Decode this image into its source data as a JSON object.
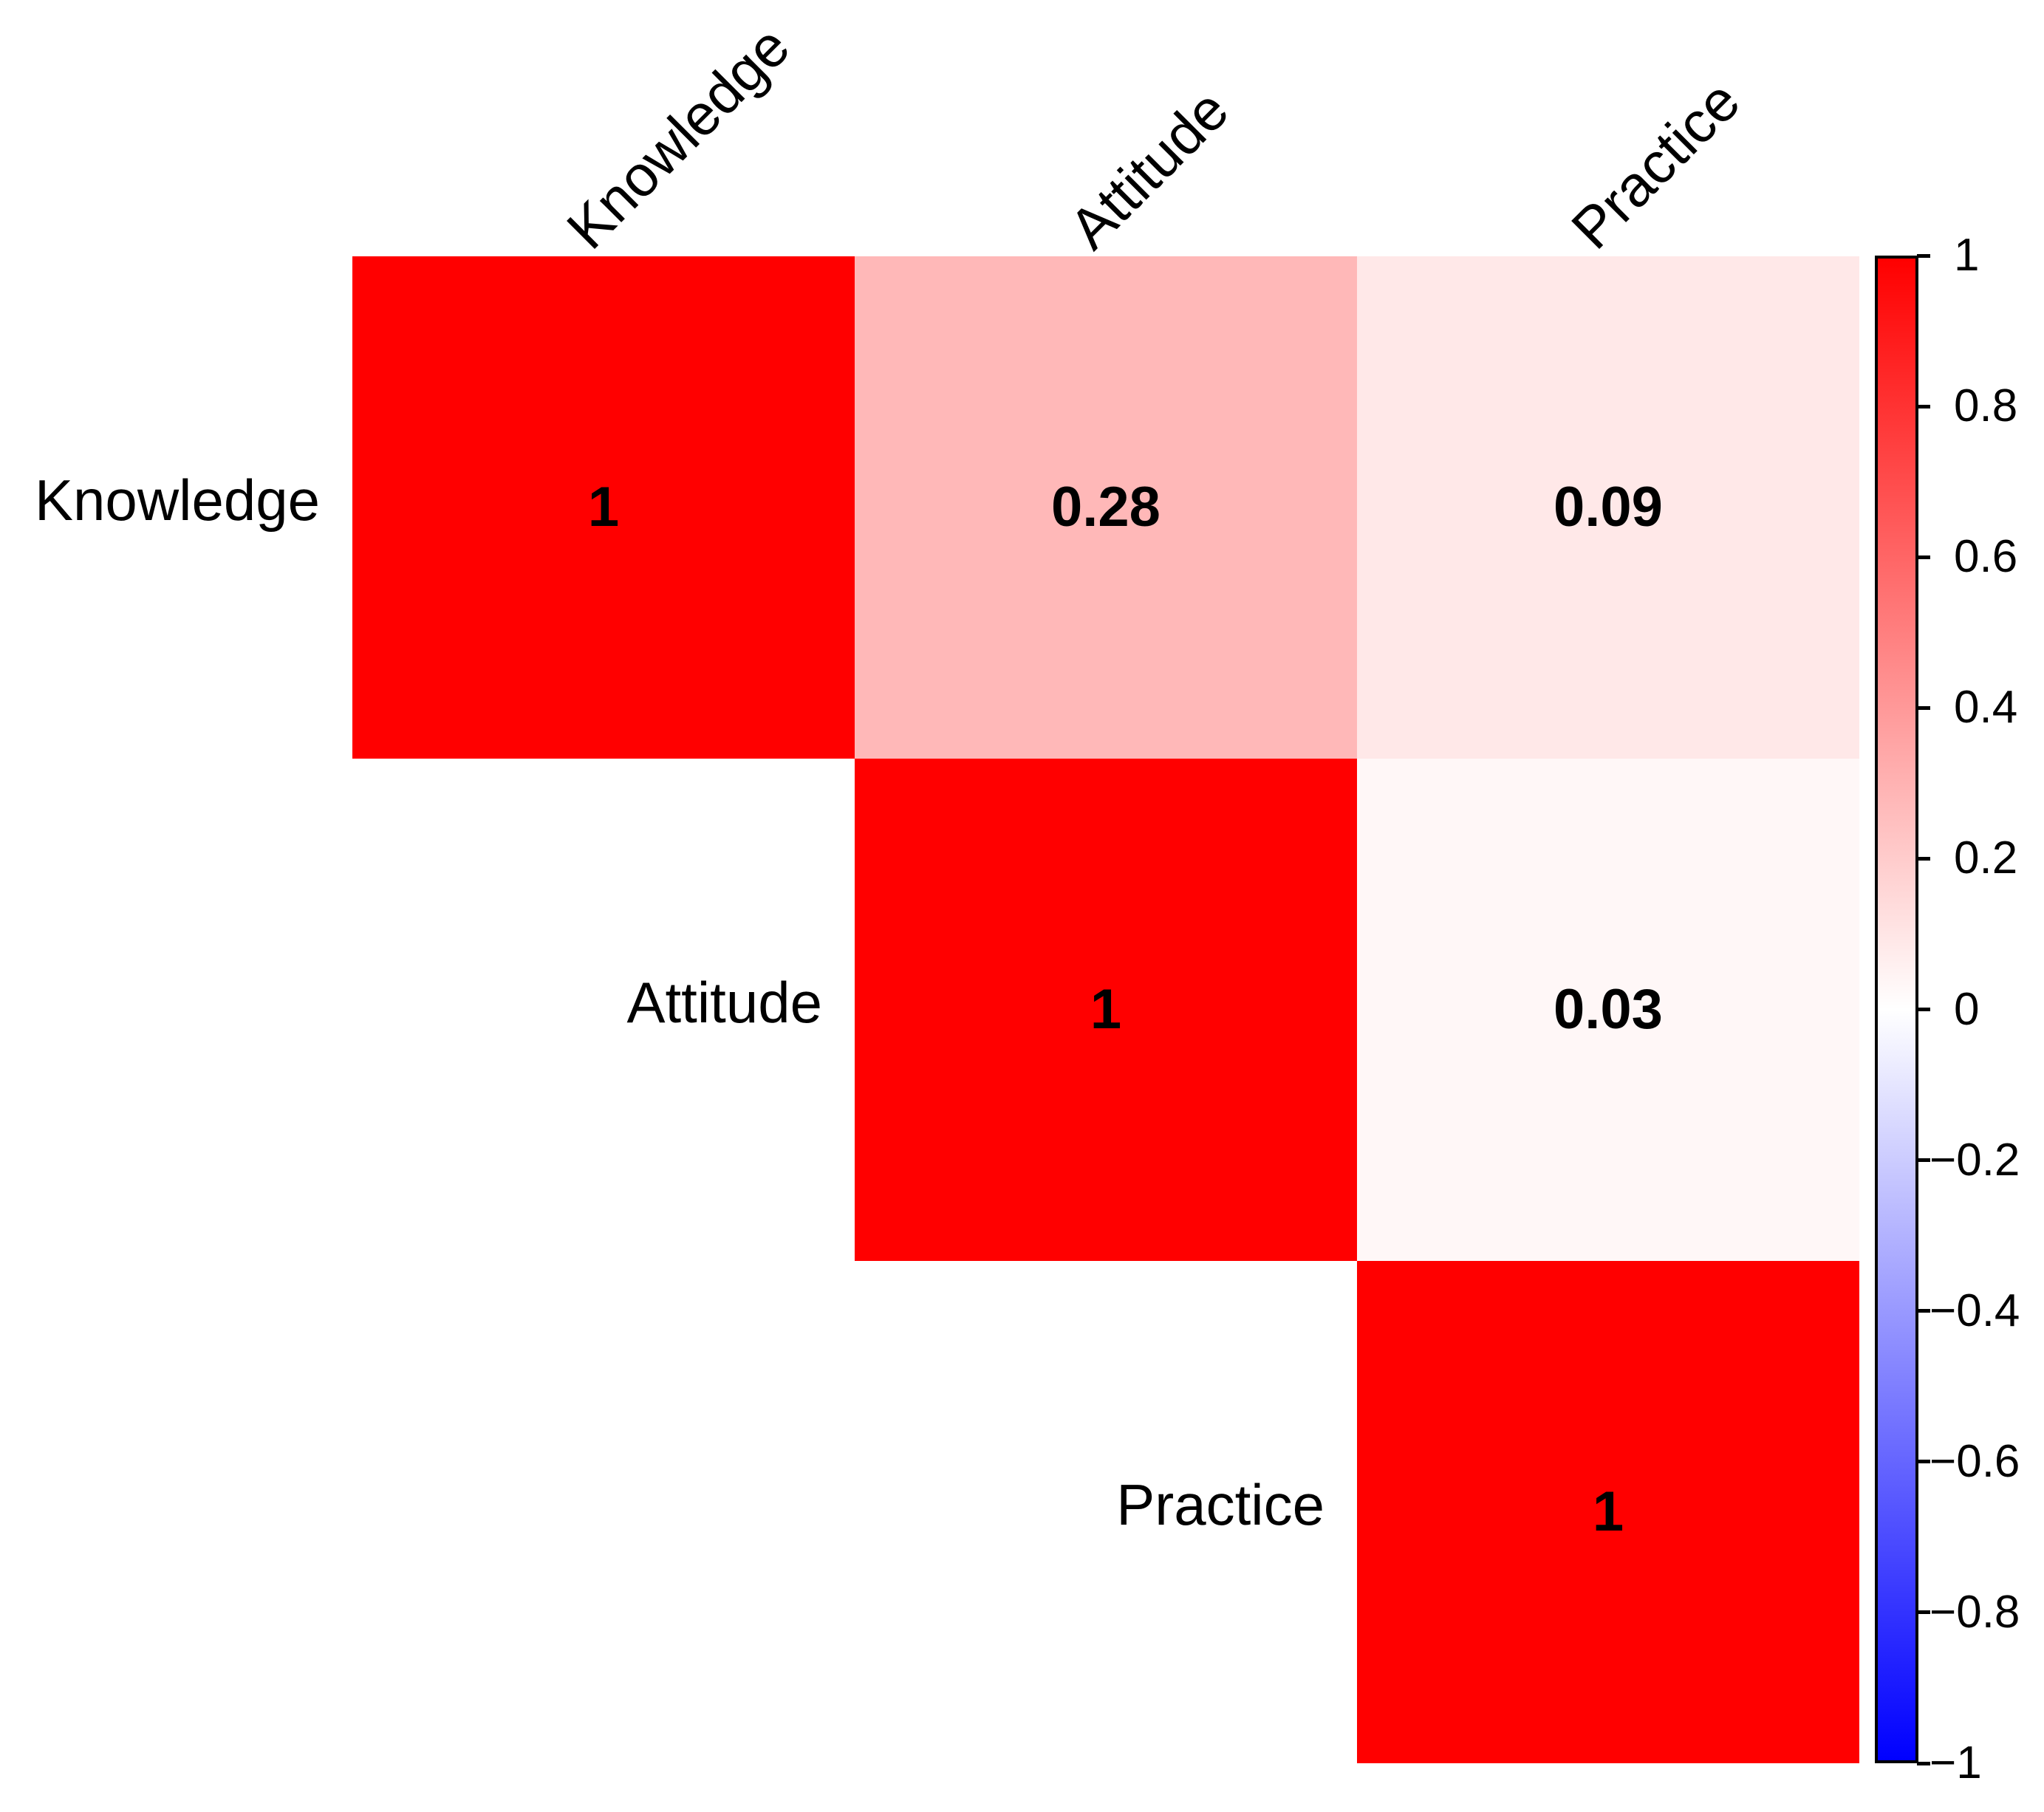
{
  "chart_data": {
    "type": "heatmap",
    "subtype": "correlation-matrix-upper-triangle",
    "variables": [
      "Knowledge",
      "Attitude",
      "Practice"
    ],
    "matrix_rows": [
      "Knowledge",
      "Attitude",
      "Practice"
    ],
    "matrix_cols": [
      "Knowledge",
      "Attitude",
      "Practice"
    ],
    "matrix": [
      [
        1,
        0.28,
        0.09
      ],
      [
        null,
        1,
        0.03
      ],
      [
        null,
        null,
        1
      ]
    ],
    "cells": [
      {
        "row": 0,
        "col": 0,
        "value": 1,
        "label": "1",
        "color": "#FF0000"
      },
      {
        "row": 0,
        "col": 1,
        "value": 0.28,
        "label": "0.28",
        "color": "#FFB8B8"
      },
      {
        "row": 0,
        "col": 2,
        "value": 0.09,
        "label": "0.09",
        "color": "#FFE8E8"
      },
      {
        "row": 1,
        "col": 1,
        "value": 1,
        "label": "1",
        "color": "#FF0000"
      },
      {
        "row": 1,
        "col": 2,
        "value": 0.03,
        "label": "0.03",
        "color": "#FFF7F7"
      },
      {
        "row": 2,
        "col": 2,
        "value": 1,
        "label": "1",
        "color": "#FF0000"
      }
    ],
    "value_text_color": "#000000",
    "background_color": "#FFFFFF",
    "grid": false,
    "colorbar": {
      "range": [
        -1,
        1
      ],
      "top_color": "#FF0000",
      "mid_color": "#FFFFFF",
      "bottom_color": "#0000FF",
      "border_color": "#000000",
      "ticks": [
        {
          "value": 1,
          "label": "1"
        },
        {
          "value": 0.8,
          "label": "0.8"
        },
        {
          "value": 0.6,
          "label": "0.6"
        },
        {
          "value": 0.4,
          "label": "0.4"
        },
        {
          "value": 0.2,
          "label": "0.2"
        },
        {
          "value": 0,
          "label": "0"
        },
        {
          "value": -0.2,
          "label": "−0.2"
        },
        {
          "value": -0.4,
          "label": "−0.4"
        },
        {
          "value": -0.6,
          "label": "−0.6"
        },
        {
          "value": -0.8,
          "label": "−0.8"
        },
        {
          "value": -1,
          "label": "−1"
        }
      ]
    }
  }
}
